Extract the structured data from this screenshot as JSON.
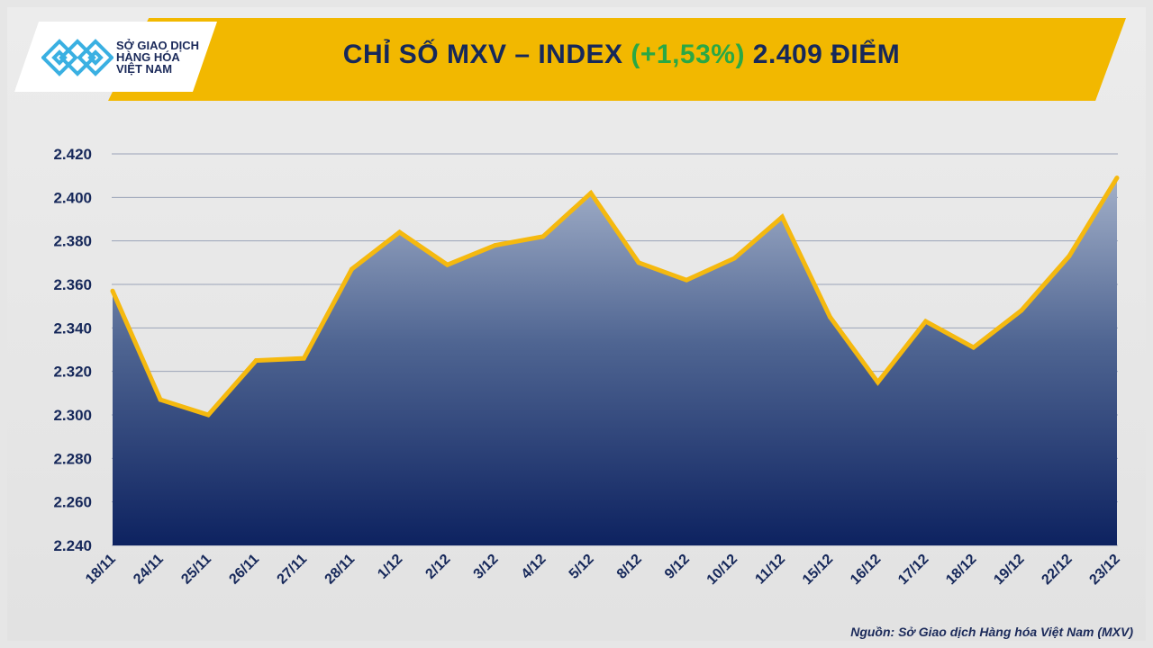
{
  "logo": {
    "lines": [
      "SỞ GIAO DỊCH",
      "HÀNG HÓA",
      "VIỆT NAM"
    ]
  },
  "header": {
    "title_prefix": "CHỈ SỐ MXV – INDEX ",
    "change": "(+1,53%)",
    "title_suffix": " 2.409 ĐIỂM"
  },
  "colors": {
    "banner": "#f2b800",
    "line": "#f5b90f",
    "fill_top": "#8f9fbd",
    "fill_bottom": "#0d2260",
    "text": "#16285a",
    "change": "#2aa845"
  },
  "source": "Nguồn: Sở Giao dịch Hàng hóa Việt Nam (MXV)",
  "chart_data": {
    "type": "area",
    "categories": [
      "18/11",
      "24/11",
      "25/11",
      "26/11",
      "27/11",
      "28/11",
      "1/12",
      "2/12",
      "3/12",
      "4/12",
      "5/12",
      "8/12",
      "9/12",
      "10/12",
      "11/12",
      "15/12",
      "16/12",
      "17/12",
      "18/12",
      "19/12",
      "22/12",
      "23/12"
    ],
    "values": [
      2357,
      2307,
      2300,
      2325,
      2326,
      2367,
      2384,
      2369,
      2378,
      2382,
      2402,
      2370,
      2362,
      2372,
      2391,
      2345,
      2315,
      2343,
      2331,
      2348,
      2373,
      2409
    ],
    "ylim": [
      2240,
      2420
    ],
    "yticks": [
      "2.240",
      "2.260",
      "2.280",
      "2.300",
      "2.320",
      "2.340",
      "2.360",
      "2.380",
      "2.400",
      "2.420"
    ],
    "grid": true,
    "legend": "none"
  }
}
